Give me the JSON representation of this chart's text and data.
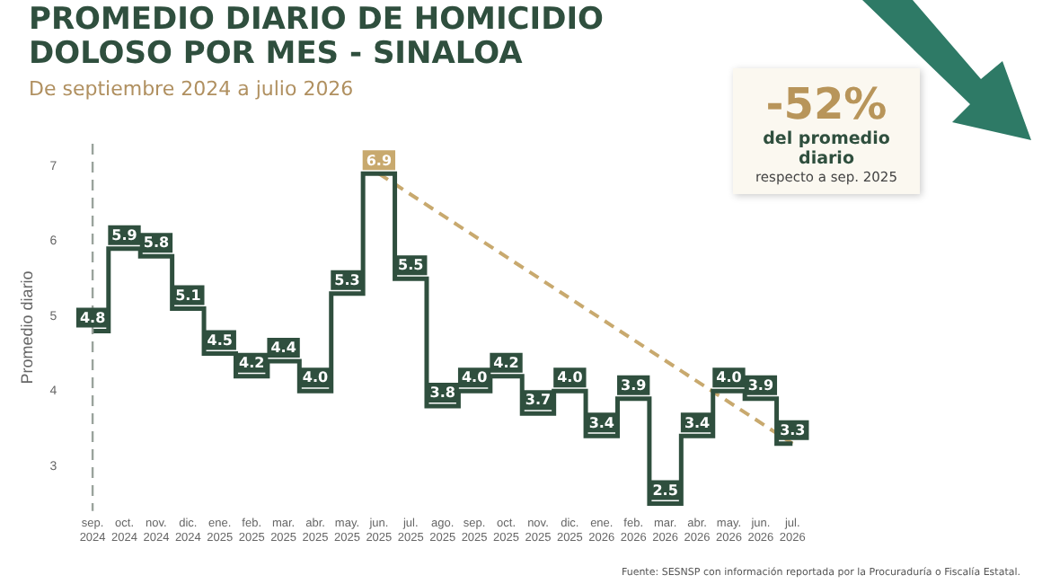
{
  "chart_data": {
    "type": "step",
    "title": "PROMEDIO DIARIO DE HOMICIDIO DOLOSO POR MES - SINALOA",
    "subtitle": "De septiembre 2024 a julio 2026",
    "ylabel": "Promedio diario",
    "categories": [
      "sep. 2024",
      "oct. 2024",
      "nov. 2024",
      "dic. 2024",
      "ene. 2025",
      "feb. 2025",
      "mar. 2025",
      "abr. 2025",
      "may. 2025",
      "jun. 2025",
      "jul. 2025",
      "ago. 2025",
      "sep. 2025",
      "oct. 2025",
      "nov. 2025",
      "dic. 2025",
      "ene. 2026",
      "feb. 2026",
      "mar. 2026",
      "abr. 2026",
      "may. 2026",
      "jun. 2026",
      "jul. 2026"
    ],
    "series": [
      {
        "color": "#2f4f3e",
        "values": [
          4.8,
          5.9,
          5.8,
          5.1,
          4.5,
          4.2,
          4.4,
          4.0,
          5.3,
          6.9,
          5.5,
          3.8,
          4.0,
          4.2,
          3.7,
          4.0,
          3.4,
          3.9,
          2.5,
          3.4,
          4.0,
          3.9,
          3.3
        ],
        "value_labels": [
          "4.8",
          "5.9",
          "5.8",
          "5.1",
          "4.5",
          "4.2",
          "4.4",
          "4.0",
          "5.3",
          "6.9",
          "5.5",
          "3.8",
          "4.0",
          "4.2",
          "3.7",
          "4.0",
          "3.4",
          "3.9",
          "2.5",
          "3.4",
          "4.0",
          "3.9",
          "3.3"
        ],
        "colors": [
          "#2f4f3e",
          "#2f4f3e",
          "#2f4f3e",
          "#2f4f3e",
          "#2f4f3e",
          "#2f4f3e",
          "#2f4f3e",
          "#2f4f3e",
          "#2f4f3e",
          "#c8a96e",
          "#2f4f3e",
          "#2f4f3e",
          "#2f4f3e",
          "#2f4f3e",
          "#2f4f3e",
          "#2f4f3e",
          "#2f4f3e",
          "#2f4f3e",
          "#2f4f3e",
          "#2f4f3e",
          "#2f4f3e",
          "#2f4f3e",
          "#2f4f3e"
        ]
      },
      {
        "type": "line",
        "color": "#c8a96e",
        "line_style": "dashed",
        "x": [
          "jun. 2025",
          "jul. 2026"
        ],
        "values": [
          6.9,
          3.3
        ]
      }
    ],
    "ylim": [
      2.4,
      7.3
    ],
    "yticks": [
      3,
      4,
      5,
      6,
      7
    ],
    "grid": false,
    "legend": false,
    "marker": "none",
    "ref_lines": [
      {
        "axis": "x",
        "value": "sep. 2024",
        "color": "#9aa39c",
        "line_style": "dashed"
      }
    ],
    "annotations": [
      "-52%",
      "del promedio diario",
      "respecto a sep. 2025",
      "Fuente: SESNSP con información reportada por la Procuraduría o Fiscalía Estatal."
    ]
  }
}
